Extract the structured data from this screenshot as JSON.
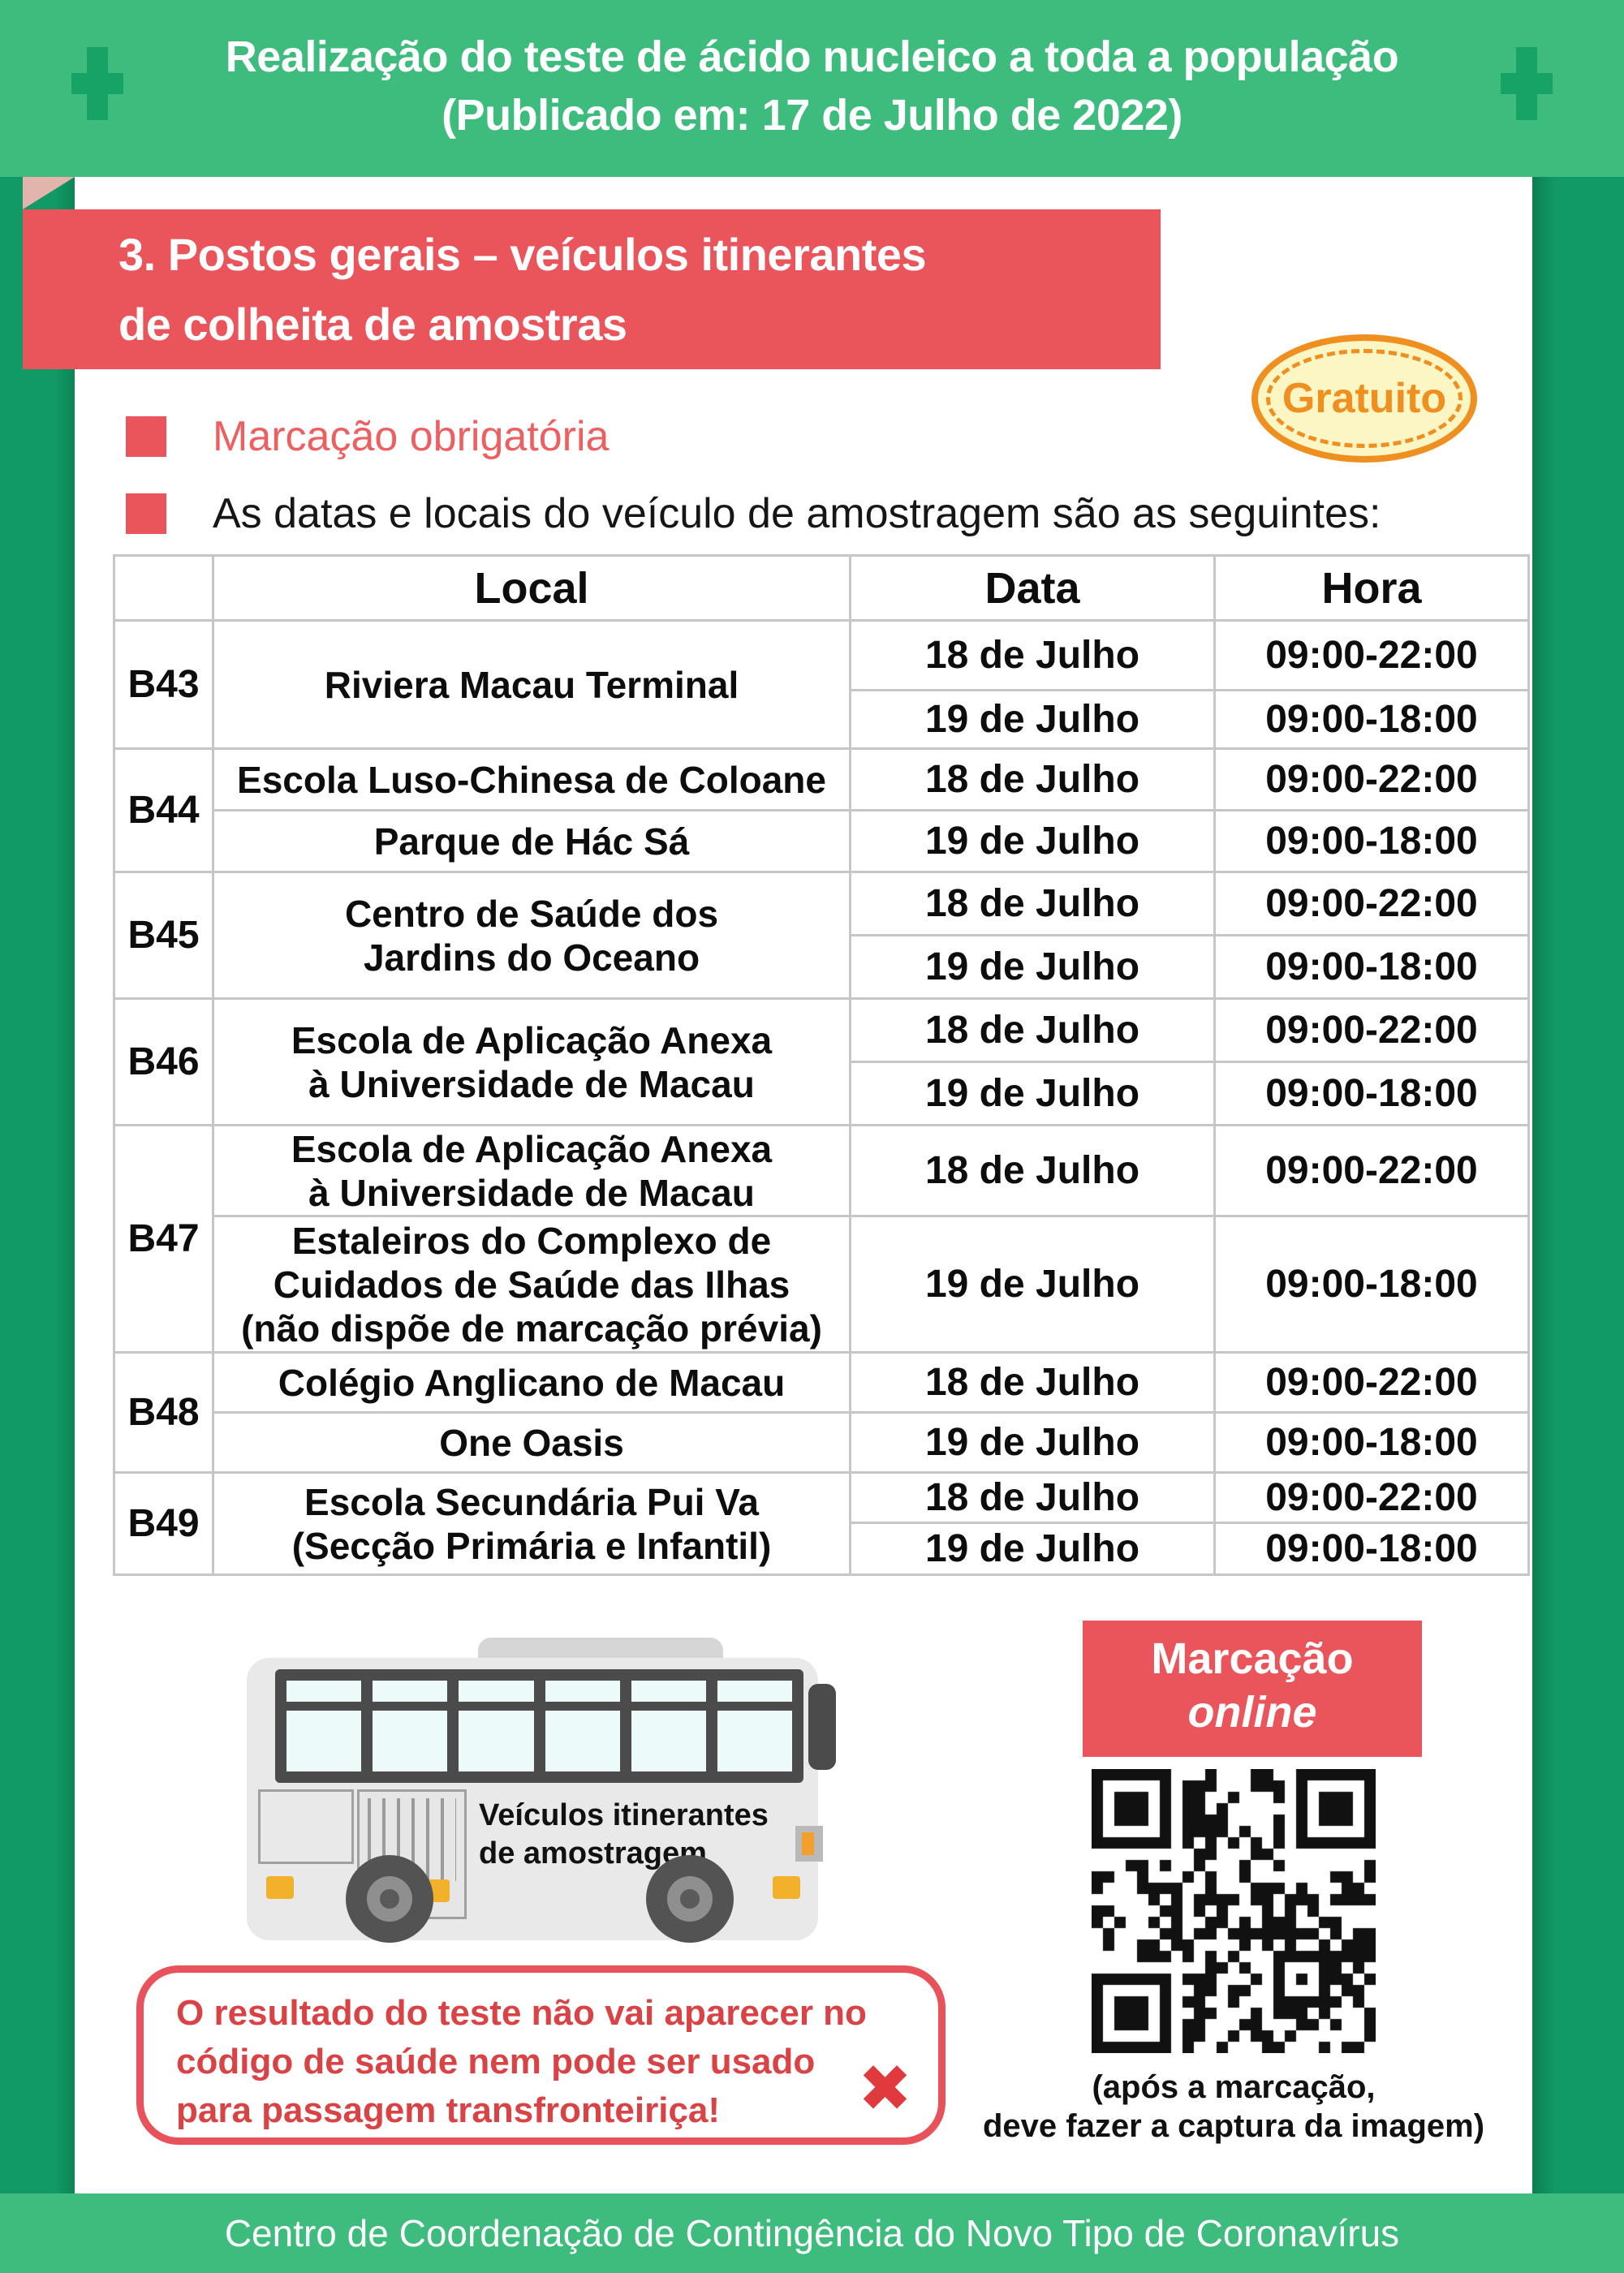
{
  "colors": {
    "green_light": "#3DBC7E",
    "green_dark": "#17A266",
    "red": "#EA555B",
    "salmon_text": "#ED5F60",
    "warning_text": "#D94345",
    "orange": "#EF8F1F",
    "badge_fill": "#FCF5C4",
    "table_border": "#C6C6C6",
    "fold_pink": "#E3B4AC",
    "bus_dark": "#4B4B4B",
    "bus_body": "#E9E9E9",
    "window_pane": "#EDFAFA",
    "qr_dark": "#111111"
  },
  "header": {
    "title_line1": "Realização do teste de ácido nucleico a toda a população",
    "title_line2": "(Publicado em: 17 de Julho de 2022)"
  },
  "section": {
    "ribbon_title": "3. Postos gerais – veículos itinerantes\nde colheita de amostras",
    "badge_label": "Gratuito"
  },
  "bullets": [
    {
      "text": "Marcação obrigatória"
    },
    {
      "text": "As datas e locais do veículo de amostragem são as seguintes:"
    }
  ],
  "table": {
    "headers": {
      "code": "",
      "local": "Local",
      "data": "Data",
      "hora": "Hora"
    },
    "groups": [
      {
        "code": "B43",
        "rows": [
          {
            "local": "Riviera Macau Terminal",
            "data": "18 de Julho",
            "hora": "09:00-22:00"
          },
          {
            "data": "19 de Julho",
            "hora": "09:00-18:00"
          }
        ]
      },
      {
        "code": "B44",
        "rows": [
          {
            "local": "Escola Luso-Chinesa de Coloane",
            "data": "18 de Julho",
            "hora": "09:00-22:00"
          },
          {
            "local": "Parque de Hác Sá",
            "data": "19 de Julho",
            "hora": "09:00-18:00"
          }
        ]
      },
      {
        "code": "B45",
        "rows": [
          {
            "local": "Centro de Saúde dos\nJardins do Oceano",
            "data": "18 de Julho",
            "hora": "09:00-22:00"
          },
          {
            "data": "19 de Julho",
            "hora": "09:00-18:00"
          }
        ]
      },
      {
        "code": "B46",
        "rows": [
          {
            "local": "Escola de Aplicação Anexa\nà Universidade de Macau",
            "data": "18 de Julho",
            "hora": "09:00-22:00"
          },
          {
            "data": "19 de Julho",
            "hora": "09:00-18:00"
          }
        ]
      },
      {
        "code": "B47",
        "rows": [
          {
            "local": "Escola de Aplicação Anexa\nà Universidade de Macau",
            "data": "18 de Julho",
            "hora": "09:00-22:00"
          },
          {
            "local": "Estaleiros do Complexo de\nCuidados de Saúde das Ilhas\n(não dispõe de marcação prévia)",
            "data": "19 de Julho",
            "hora": "09:00-18:00"
          }
        ]
      },
      {
        "code": "B48",
        "rows": [
          {
            "local": "Colégio Anglicano de Macau",
            "data": "18 de Julho",
            "hora": "09:00-22:00"
          },
          {
            "local": "One Oasis",
            "data": "19 de Julho",
            "hora": "09:00-18:00"
          }
        ]
      },
      {
        "code": "B49",
        "rows": [
          {
            "local": "Escola Secundária Pui Va\n(Secção Primária e Infantil)",
            "data": "18 de Julho",
            "hora": "09:00-22:00"
          },
          {
            "data": "19 de Julho",
            "hora": "09:00-18:00"
          }
        ]
      }
    ]
  },
  "bus": {
    "label": "Veículos itinerantes\nde amostragem"
  },
  "booking": {
    "title_line1": "Marcação",
    "title_line2": "online",
    "qr_caption": "(após a marcação,\ndeve fazer a captura da imagem)"
  },
  "warning": {
    "text": "O resultado do teste não vai aparecer no\ncódigo de saúde nem pode ser usado\npara passagem transfronteiriça!",
    "x_icon": "✖"
  },
  "footer": {
    "text": "Centro de Coordenação de Contingência do Novo Tipo de Coronavírus"
  }
}
